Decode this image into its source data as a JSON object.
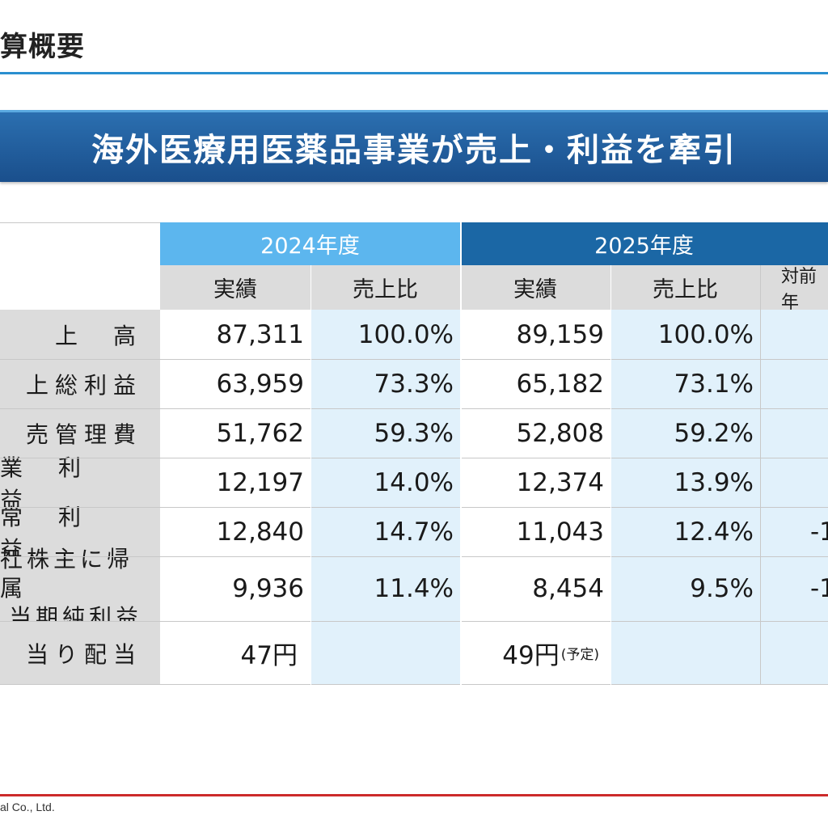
{
  "page_title": "算概要",
  "banner": "海外医療用医薬品事業が売上・利益を牽引",
  "years": {
    "fy2024": "2024年度",
    "fy2025": "2025年度"
  },
  "subheaders": {
    "actual": "実績",
    "ratio": "売上比",
    "yoy": "対前年"
  },
  "rows": [
    {
      "label": "上　高",
      "a24": "87,311",
      "r24": "100.0%",
      "a25": "89,159",
      "r25": "100.0%",
      "yoy": ""
    },
    {
      "label": "上総利益",
      "a24": "63,959",
      "r24": "73.3%",
      "a25": "65,182",
      "r25": "73.1%",
      "yoy": ""
    },
    {
      "label": "売管理費",
      "a24": "51,762",
      "r24": "59.3%",
      "a25": "52,808",
      "r25": "59.2%",
      "yoy": ""
    },
    {
      "label": "業　利　益",
      "a24": "12,197",
      "r24": "14.0%",
      "a25": "12,374",
      "r25": "13.9%",
      "yoy": ""
    },
    {
      "label": "常　利　益",
      "a24": "12,840",
      "r24": "14.7%",
      "a25": "11,043",
      "r25": "12.4%",
      "yoy": "-1"
    },
    {
      "label1": "社株主に帰属",
      "label2": "当期純利益",
      "a24": "9,936",
      "r24": "11.4%",
      "a25": "8,454",
      "r25": "9.5%",
      "yoy": "-1"
    },
    {
      "label": "当り配当",
      "a24": "47円",
      "r24": "",
      "a25": "49円",
      "a25_note": "(予定)",
      "r25": "",
      "yoy": ""
    }
  ],
  "footer": "al Co., Ltd."
}
